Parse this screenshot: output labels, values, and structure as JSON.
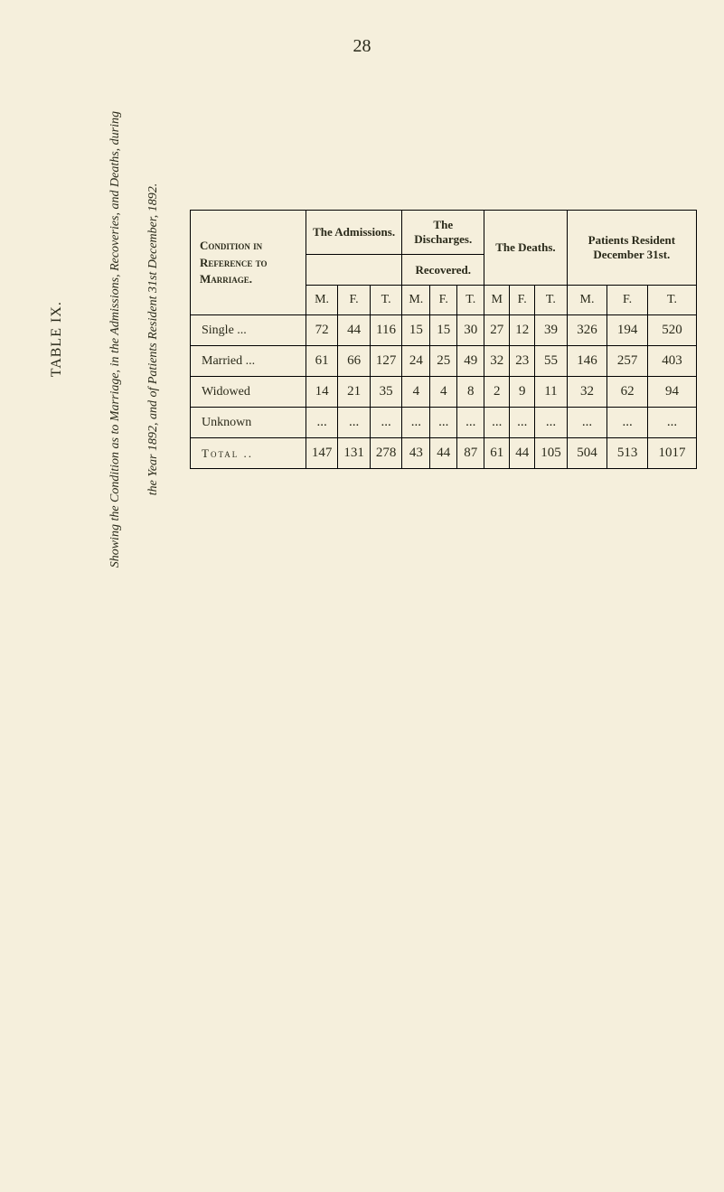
{
  "page": {
    "number": "28"
  },
  "caption": {
    "table_label": "TABLE IX.",
    "line1_prefix": "Showing the Condition as to Marriage, in the Admissions, Recoveries, and Deaths, during",
    "line2": "the Year 1892, and of Patients Resident 31st December, 1892."
  },
  "headers": {
    "condition": "Condition in Reference to Marriage.",
    "admissions": "The Admissions.",
    "discharges": "The Discharges.",
    "recovered": "Recovered.",
    "deaths": "The Deaths.",
    "resident": "Patients Resident December 31st.",
    "m": "M.",
    "f": "F.",
    "t": "T.",
    "m_alt": "M"
  },
  "rows": {
    "labels": {
      "single": "Single ...",
      "married": "Married ...",
      "widowed": "Widowed",
      "unknown": "Unknown",
      "total": "Total"
    },
    "single": {
      "admissions": {
        "m": "72",
        "f": "44",
        "t": "116"
      },
      "recovered": {
        "m": "15",
        "f": "15",
        "t": "30"
      },
      "deaths": {
        "m": "27",
        "f": "12",
        "t": "39"
      },
      "resident": {
        "m": "326",
        "f": "194",
        "t": "520"
      }
    },
    "married": {
      "admissions": {
        "m": "61",
        "f": "66",
        "t": "127"
      },
      "recovered": {
        "m": "24",
        "f": "25",
        "t": "49"
      },
      "deaths": {
        "m": "32",
        "f": "23",
        "t": "55"
      },
      "resident": {
        "m": "146",
        "f": "257",
        "t": "403"
      }
    },
    "widowed": {
      "admissions": {
        "m": "14",
        "f": "21",
        "t": "35"
      },
      "recovered": {
        "m": "4",
        "f": "4",
        "t": "8"
      },
      "deaths": {
        "m": "2",
        "f": "9",
        "t": "11"
      },
      "resident": {
        "m": "32",
        "f": "62",
        "t": "94"
      }
    },
    "unknown": {
      "admissions": {
        "m": "...",
        "f": "...",
        "t": "..."
      },
      "recovered": {
        "m": "...",
        "f": "...",
        "t": "..."
      },
      "deaths": {
        "m": "...",
        "f": "...",
        "t": "..."
      },
      "resident": {
        "m": "...",
        "f": "...",
        "t": "..."
      }
    },
    "total": {
      "admissions": {
        "m": "147",
        "f": "131",
        "t": "278"
      },
      "recovered": {
        "m": "43",
        "f": "44",
        "t": "87"
      },
      "deaths": {
        "m": "61",
        "f": "44",
        "t": "105"
      },
      "resident": {
        "m": "504",
        "f": "513",
        "t": "1017"
      }
    }
  },
  "dots": {
    "two": ".."
  }
}
